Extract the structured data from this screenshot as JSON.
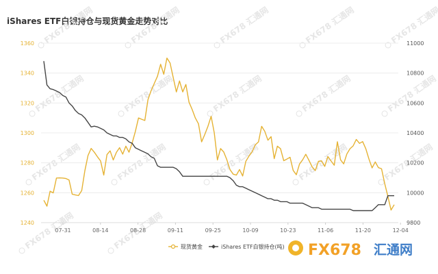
{
  "chart_data": {
    "type": "line",
    "title": "iShares ETF白银持仓与现货黄金走势对比",
    "x_labels": [
      "07-31",
      "08-14",
      "08-28",
      "09-11",
      "09-25",
      "10-09",
      "10-23",
      "11-06",
      "11-20",
      "12-04"
    ],
    "y_left": {
      "ticks": [
        1240,
        1260,
        1280,
        1300,
        1320,
        1340,
        1360
      ],
      "min": 1240,
      "max": 1360
    },
    "y_right": {
      "ticks": [
        9800,
        10000,
        10200,
        10400,
        10600,
        10800,
        11000
      ],
      "min": 9800,
      "max": 11000
    },
    "grid": true,
    "legend_position": "bottom",
    "series": [
      {
        "name": "现货黄金",
        "axis": "left",
        "color": "#e5b233",
        "marker": "circle",
        "values": [
          1255.0,
          1251.0,
          1261.0,
          1259.9,
          1269.8,
          1269.9,
          1269.8,
          1269.5,
          1268.5,
          1259.0,
          1258.5,
          1258.1,
          1261.4,
          1274.7,
          1284.9,
          1289.6,
          1287.1,
          1284.0,
          1281.2,
          1271.8,
          1285.5,
          1288.0,
          1281.9,
          1287.0,
          1290.1,
          1285.8,
          1291.1,
          1287.1,
          1293.4,
          1301.0,
          1310.0,
          1309.1,
          1308.3,
          1322.2,
          1328.2,
          1333.0,
          1337.9,
          1345.9,
          1339.2,
          1350.0,
          1346.7,
          1337.0,
          1327.4,
          1334.7,
          1327.4,
          1332.4,
          1320.5,
          1315.6,
          1310.0,
          1306.1,
          1294.0,
          1298.9,
          1304.5,
          1311.1,
          1300.0,
          1281.9,
          1289.5,
          1287.2,
          1282.0,
          1275.4,
          1272.4,
          1271.8,
          1275.5,
          1271.2,
          1281.0,
          1284.5,
          1287.4,
          1292.0,
          1294.0,
          1304.4,
          1301.0,
          1295.1,
          1297.5,
          1282.8,
          1291.1,
          1289.4,
          1281.4,
          1282.5,
          1283.7,
          1274.9,
          1272.0,
          1279.1,
          1282.0,
          1285.7,
          1281.6,
          1277.3,
          1274.8,
          1281.0,
          1281.2,
          1277.6,
          1284.2,
          1281.2,
          1278.4,
          1294.1,
          1282.0,
          1279.3,
          1285.9,
          1289.4,
          1291.3,
          1295.6,
          1293.0,
          1294.2,
          1289.4,
          1282.5,
          1276.6,
          1280.6,
          1276.8,
          1276.0,
          1266.0,
          1257.5,
          1248.4,
          1252.0
        ]
      },
      {
        "name": "iShares ETF白银持仓(吨)",
        "axis": "right",
        "color": "#444444",
        "marker": "diamond",
        "values": [
          10880,
          10720,
          10695,
          10690,
          10680,
          10670,
          10650,
          10640,
          10600,
          10580,
          10550,
          10530,
          10520,
          10500,
          10470,
          10440,
          10445,
          10440,
          10430,
          10420,
          10400,
          10390,
          10380,
          10380,
          10370,
          10370,
          10360,
          10340,
          10330,
          10300,
          10290,
          10280,
          10270,
          10260,
          10240,
          10230,
          10180,
          10170,
          10170,
          10170,
          10170,
          10170,
          10160,
          10140,
          10110,
          10110,
          10110,
          10110,
          10110,
          10110,
          10110,
          10110,
          10110,
          10110,
          10110,
          10110,
          10110,
          10110,
          10110,
          10100,
          10080,
          10050,
          10040,
          10040,
          10030,
          10020,
          10010,
          10000,
          9990,
          9980,
          9970,
          9960,
          9960,
          9950,
          9950,
          9940,
          9940,
          9940,
          9930,
          9930,
          9930,
          9930,
          9930,
          9920,
          9910,
          9900,
          9900,
          9900,
          9890,
          9890,
          9890,
          9890,
          9890,
          9890,
          9890,
          9890,
          9890,
          9890,
          9880,
          9880,
          9880,
          9880,
          9880,
          9880,
          9880,
          9900,
          9920,
          9920,
          9920,
          9980,
          9980,
          9980
        ]
      }
    ]
  },
  "watermark": {
    "text": "FX678",
    "suffix": "汇通网"
  }
}
